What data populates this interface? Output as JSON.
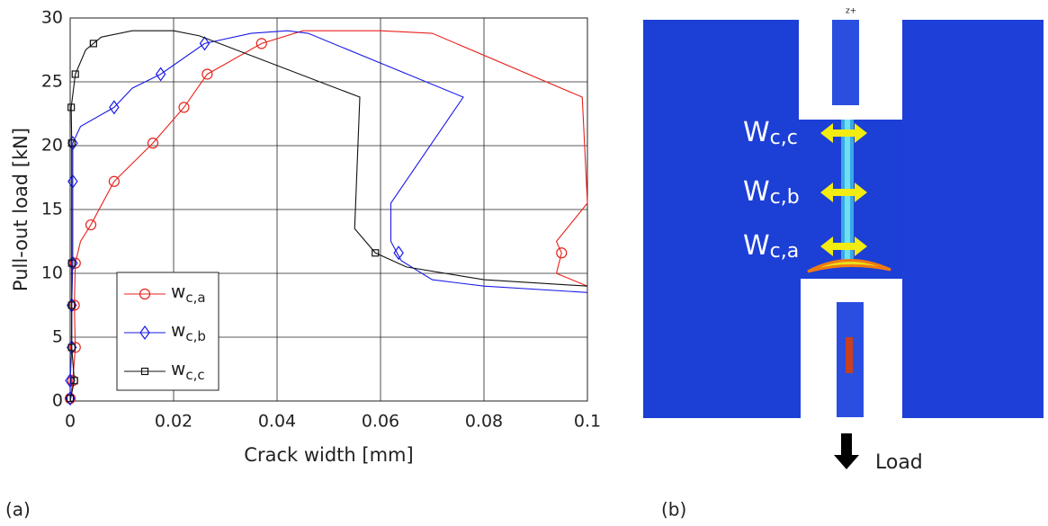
{
  "chart_data": {
    "type": "line",
    "xlabel": "Crack width [mm]",
    "ylabel": "Pull-out load [kN]",
    "xlim": [
      0,
      0.1
    ],
    "xticks": [
      0,
      0.02,
      0.04,
      0.06,
      0.08,
      0.1
    ],
    "ylim": [
      0,
      30
    ],
    "yticks": [
      0,
      5,
      10,
      15,
      20,
      25,
      30
    ],
    "grid": true,
    "legend": "lower left",
    "series": [
      {
        "name": "w",
        "name_subscript": "c,a",
        "color": "#e8211b",
        "marker": "circle",
        "x": [
          0,
          0.0005,
          0.001,
          0.0008,
          0.001,
          0.002,
          0.004,
          0.0085,
          0.016,
          0.022,
          0.0265,
          0.037,
          0.045,
          0.06,
          0.07,
          0.099,
          0.1,
          0.098,
          0.094,
          0.095,
          0.094,
          0.1
        ],
        "values": [
          0,
          1.6,
          4.2,
          7.5,
          10.8,
          12.5,
          13.8,
          17.2,
          20.2,
          23,
          25.6,
          28,
          29,
          29,
          28.8,
          23.8,
          15.5,
          14.5,
          12.5,
          11.6,
          10,
          9
        ],
        "marker_x": [
          0,
          0.0005,
          0.001,
          0.0008,
          0.001,
          0.004,
          0.0085,
          0.016,
          0.022,
          0.0265,
          0.037,
          0.095
        ],
        "marker_values": [
          0.2,
          1.6,
          4.2,
          7.5,
          10.8,
          13.8,
          17.2,
          20.2,
          23,
          25.6,
          28,
          11.6
        ]
      },
      {
        "name": "w",
        "name_subscript": "c,b",
        "color": "#1a1ae6",
        "marker": "diamond",
        "x": [
          0,
          0,
          0.0003,
          0.0003,
          0.0005,
          0.0005,
          0.0005,
          0.002,
          0.0085,
          0.012,
          0.0175,
          0.026,
          0.035,
          0.042,
          0.046,
          0.076,
          0.062,
          0.062,
          0.064,
          0.07,
          0.08,
          0.1
        ],
        "values": [
          0,
          1.6,
          4.2,
          7.5,
          10.8,
          17.2,
          20.2,
          21.5,
          23,
          24.5,
          25.6,
          28,
          28.8,
          29,
          28.8,
          23.8,
          15.5,
          12.5,
          11,
          9.5,
          9,
          8.5
        ],
        "marker_x": [
          0,
          0,
          0.0003,
          0.0003,
          0.0005,
          0.0005,
          0.0005,
          0.0085,
          0.0175,
          0.026,
          0.0635
        ],
        "marker_values": [
          0.2,
          1.6,
          4.2,
          7.5,
          10.8,
          17.2,
          20.2,
          23,
          25.6,
          28,
          11.6
        ]
      },
      {
        "name": "w",
        "name_subscript": "c,c",
        "color": "#111111",
        "marker": "square",
        "x": [
          0,
          0.0008,
          0.0003,
          0.0003,
          0.0003,
          0.0003,
          0.0002,
          0.001,
          0.003,
          0.006,
          0.012,
          0.02,
          0.025,
          0.056,
          0.055,
          0.059,
          0.065,
          0.08,
          0.1
        ],
        "values": [
          0,
          1.6,
          4.2,
          7.5,
          10.8,
          20.2,
          23,
          25.6,
          27.5,
          28.5,
          29,
          29,
          28.6,
          23.8,
          13.5,
          11.6,
          10.5,
          9.5,
          9
        ],
        "marker_x": [
          0,
          0.0008,
          0.0003,
          0.0003,
          0.0003,
          0.0003,
          0.0002,
          0.001,
          0.0045,
          0.059
        ],
        "marker_values": [
          0.2,
          1.6,
          4.2,
          7.5,
          10.8,
          20.2,
          23,
          25.6,
          28,
          11.6
        ]
      }
    ]
  },
  "panel_labels": [
    "(a)",
    "(b)"
  ],
  "image": {
    "axis_label": "z+",
    "load_label": "Load",
    "width_labels": [
      {
        "main": "W",
        "sub": "c,c"
      },
      {
        "main": "W",
        "sub": "c,b"
      },
      {
        "main": "W",
        "sub": "c,a"
      }
    ]
  }
}
